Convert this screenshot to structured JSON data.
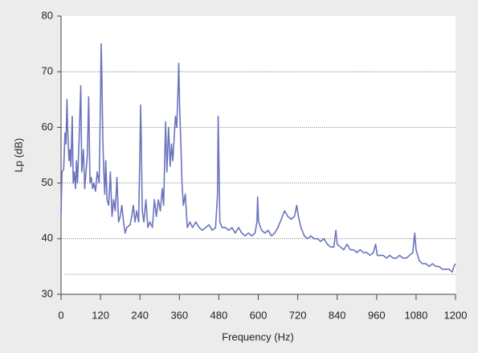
{
  "chart_data": {
    "type": "line",
    "x_label": "Frequency (Hz)",
    "y_label": "Lp (dB)",
    "xlim": [
      0,
      1200
    ],
    "xticks": [
      0,
      120,
      240,
      360,
      480,
      600,
      720,
      840,
      960,
      1080,
      1200
    ],
    "ylim": [
      30,
      80
    ],
    "yticks": [
      30,
      40,
      50,
      60,
      70,
      80
    ],
    "grid": true,
    "reference_line": {
      "value": 33.6,
      "color": "#c8c8c8"
    },
    "x": [
      0,
      3,
      8,
      12,
      15,
      18,
      20,
      24,
      27,
      30,
      34,
      37,
      40,
      44,
      47,
      50,
      55,
      60,
      63,
      68,
      72,
      76,
      80,
      84,
      88,
      92,
      96,
      100,
      105,
      110,
      116,
      120,
      122,
      124,
      127,
      130,
      133,
      136,
      140,
      145,
      150,
      155,
      160,
      165,
      170,
      175,
      180,
      185,
      190,
      195,
      200,
      210,
      215,
      220,
      225,
      230,
      236,
      240,
      242,
      244,
      247,
      252,
      258,
      264,
      270,
      278,
      284,
      290,
      296,
      302,
      308,
      312,
      318,
      322,
      327,
      332,
      336,
      340,
      344,
      348,
      352,
      356,
      358,
      361,
      364,
      368,
      372,
      378,
      384,
      392,
      400,
      410,
      420,
      430,
      440,
      450,
      460,
      470,
      476,
      478,
      480,
      483,
      490,
      500,
      510,
      520,
      530,
      540,
      550,
      560,
      570,
      580,
      590,
      596,
      598,
      601,
      610,
      620,
      630,
      640,
      650,
      660,
      670,
      680,
      690,
      700,
      710,
      717,
      722,
      730,
      740,
      750,
      760,
      770,
      780,
      790,
      800,
      810,
      820,
      830,
      836,
      840,
      850,
      860,
      870,
      880,
      890,
      900,
      910,
      920,
      930,
      940,
      950,
      957,
      962,
      970,
      980,
      990,
      1000,
      1010,
      1020,
      1030,
      1040,
      1050,
      1060,
      1070,
      1076,
      1080,
      1090,
      1100,
      1110,
      1120,
      1130,
      1140,
      1150,
      1160,
      1170,
      1180,
      1190,
      1195,
      1200
    ],
    "series": [
      {
        "color": "#6b74bd",
        "values": [
          44.5,
          52,
          52.5,
          59,
          57,
          65,
          60,
          54,
          56,
          53,
          62,
          50,
          52,
          49,
          54,
          50,
          58,
          67.5,
          52,
          56,
          49,
          52,
          55,
          65.5,
          50,
          51,
          49,
          50,
          48.5,
          52,
          50,
          65,
          75,
          70,
          58,
          52,
          48,
          54,
          47,
          46,
          52,
          44,
          47,
          45,
          51,
          43,
          44,
          46,
          43,
          41,
          42,
          42.5,
          44,
          46,
          43,
          45,
          43,
          56,
          64,
          58,
          45,
          43,
          47,
          42,
          43,
          42,
          47,
          44,
          47,
          45,
          49,
          46,
          61,
          52,
          60,
          53,
          57,
          54,
          58,
          62,
          60,
          67,
          71.5,
          63,
          58,
          50,
          46,
          48,
          42,
          43,
          42,
          43,
          42,
          41.5,
          42,
          42.5,
          41.5,
          42,
          48,
          62,
          55,
          43,
          42,
          42,
          41.5,
          42,
          41,
          42,
          41,
          40.5,
          41,
          40.5,
          41,
          43,
          47.5,
          43,
          41.5,
          41,
          41.5,
          40.5,
          41,
          42,
          43.5,
          45,
          44,
          43.5,
          44,
          46,
          44,
          42,
          40.5,
          40,
          40.5,
          40,
          40,
          39.5,
          40,
          39,
          38.5,
          38.5,
          41.5,
          39,
          38.5,
          38,
          39,
          38,
          38,
          37.5,
          38,
          37.5,
          37.5,
          37,
          37.5,
          39,
          37,
          37,
          37,
          36.5,
          37,
          36.5,
          36.5,
          37,
          36.5,
          36.5,
          37,
          37.5,
          41,
          38,
          36,
          35.5,
          35.5,
          35,
          35.5,
          35,
          35,
          34.5,
          34.5,
          34.5,
          34,
          35,
          35.5
        ]
      }
    ]
  }
}
